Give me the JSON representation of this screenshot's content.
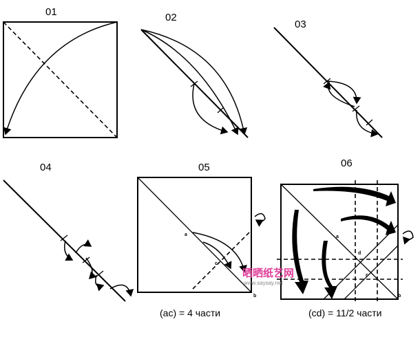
{
  "steps": [
    {
      "label": "01"
    },
    {
      "label": "02"
    },
    {
      "label": "03"
    },
    {
      "label": "04"
    },
    {
      "label": "05",
      "points": [
        "a",
        "c",
        "b"
      ],
      "caption": "(ac) = 4 части"
    },
    {
      "label": "06",
      "points": [
        "a",
        "d",
        "c",
        "b"
      ],
      "caption": "(cd) = 11/2 части"
    }
  ],
  "watermark": {
    "title": "晒晒纸艺网",
    "url": "www.saysay.net"
  }
}
